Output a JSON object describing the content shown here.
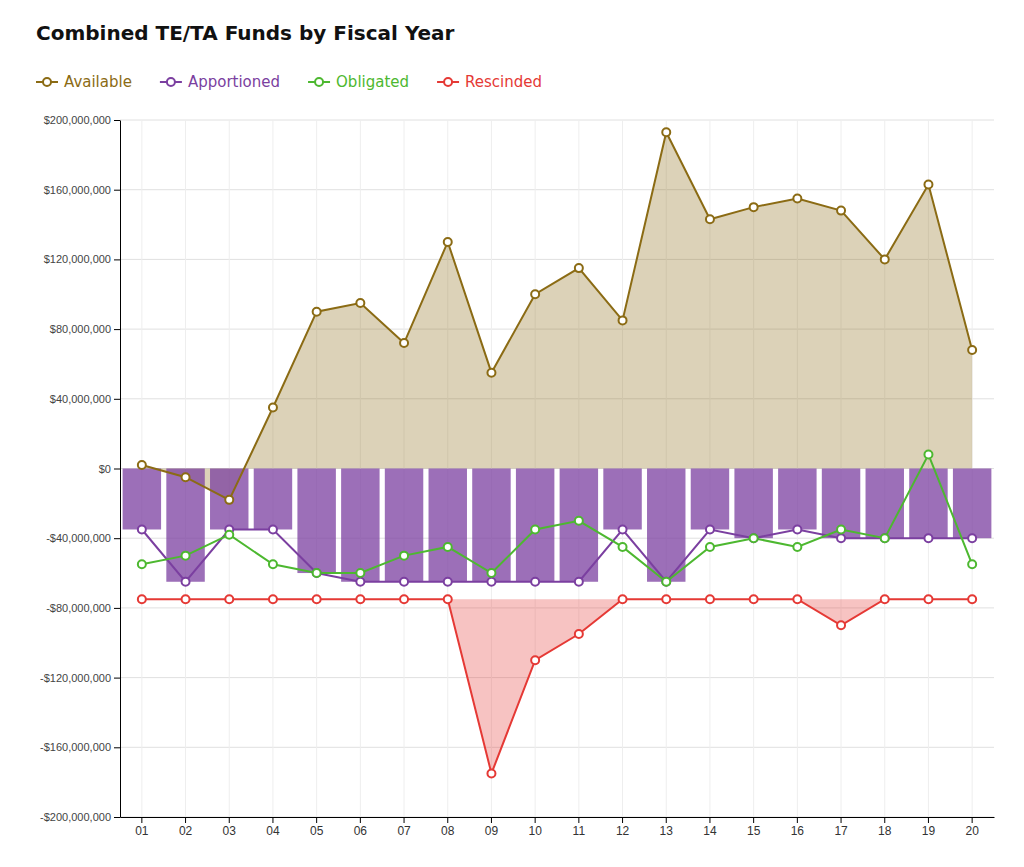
{
  "chart_data": {
    "type": "combo",
    "title": "Combined TE/TA Funds by Fiscal Year",
    "categories": [
      "01",
      "02",
      "03",
      "04",
      "05",
      "06",
      "07",
      "08",
      "09",
      "10",
      "11",
      "12",
      "13",
      "14",
      "15",
      "16",
      "17",
      "18",
      "19",
      "20"
    ],
    "series": [
      {
        "name": "Available",
        "type": "area",
        "color": "#8B6B14",
        "marker": "circle",
        "line_style": "solid",
        "values": [
          2000000,
          -5000000,
          -18000000,
          35000000,
          90000000,
          95000000,
          72000000,
          130000000,
          55000000,
          100000000,
          115000000,
          85000000,
          193000000,
          143000000,
          150000000,
          155000000,
          148000000,
          120000000,
          163000000,
          68000000
        ]
      },
      {
        "name": "Apportioned",
        "type": "bar",
        "color": "#7B3FA0",
        "marker": "circle",
        "line_style": "solid",
        "values": [
          -35000000,
          -65000000,
          -35000000,
          -35000000,
          -60000000,
          -65000000,
          -65000000,
          -65000000,
          -65000000,
          -65000000,
          -65000000,
          -35000000,
          -65000000,
          -35000000,
          -40000000,
          -35000000,
          -40000000,
          -40000000,
          -40000000,
          -40000000
        ]
      },
      {
        "name": "Obligated",
        "type": "line",
        "color": "#4DB830",
        "marker": "circle",
        "line_style": "solid",
        "values": [
          -55000000,
          -50000000,
          -38000000,
          -55000000,
          -60000000,
          -60000000,
          -50000000,
          -45000000,
          -60000000,
          -35000000,
          -30000000,
          -45000000,
          -65000000,
          -45000000,
          -40000000,
          -45000000,
          -35000000,
          -40000000,
          8000000,
          -55000000
        ]
      },
      {
        "name": "Rescinded",
        "type": "area",
        "color": "#E53935",
        "marker": "circle",
        "line_style": "solid",
        "baseline": -75000000,
        "values": [
          -75000000,
          -75000000,
          -75000000,
          -75000000,
          -75000000,
          -75000000,
          -75000000,
          -75000000,
          -175000000,
          -110000000,
          -95000000,
          -75000000,
          -75000000,
          -75000000,
          -75000000,
          -75000000,
          -90000000,
          -75000000,
          -75000000,
          -75000000
        ]
      }
    ],
    "ylim": [
      -200000000,
      200000000
    ],
    "yticks": [
      {
        "value": -200000000,
        "label": "-$200,000,000"
      },
      {
        "value": -160000000,
        "label": "-$160,000,000"
      },
      {
        "value": -120000000,
        "label": "-$120,000,000"
      },
      {
        "value": -80000000,
        "label": "-$80,000,000"
      },
      {
        "value": -40000000,
        "label": "-$40,000,000"
      },
      {
        "value": 0,
        "label": "$0"
      },
      {
        "value": 40000000,
        "label": "$40,000,000"
      },
      {
        "value": 80000000,
        "label": "$80,000,000"
      },
      {
        "value": 120000000,
        "label": "$120,000,000"
      },
      {
        "value": 160000000,
        "label": "$160,000,000"
      },
      {
        "value": 200000000,
        "label": "$200,000,000"
      }
    ],
    "grid": true,
    "legend": "top"
  }
}
